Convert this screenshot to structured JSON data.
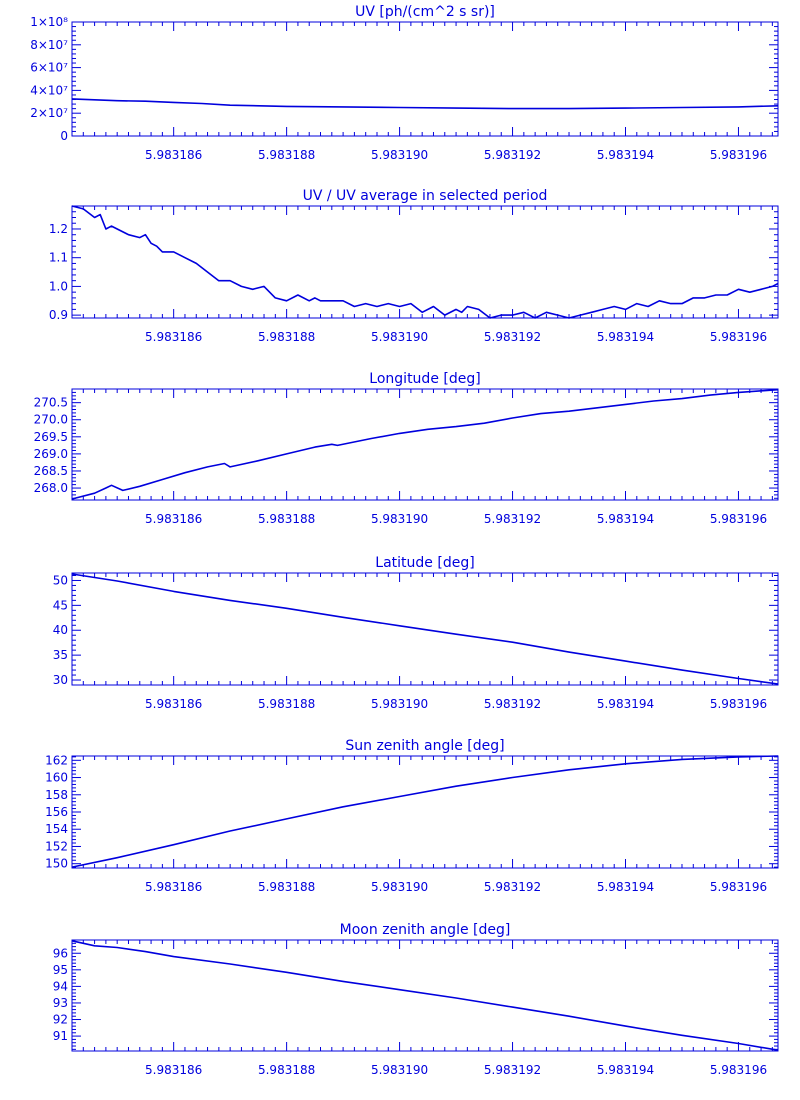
{
  "style": {
    "color": "#0000dd",
    "background": "#ffffff"
  },
  "x_axis": {
    "range": [
      5.9831842,
      5.9831967
    ],
    "tick_labels": [
      {
        "value": 5.983186,
        "label": "5.983186"
      },
      {
        "value": 5.983188,
        "label": "5.983188"
      },
      {
        "value": 5.98319,
        "label": "5.983190"
      },
      {
        "value": 5.983192,
        "label": "5.983192"
      },
      {
        "value": 5.983194,
        "label": "5.983194"
      },
      {
        "value": 5.983196,
        "label": "5.983196"
      }
    ]
  },
  "chart_data": [
    {
      "type": "line",
      "title": "UV [ph/(cm^2 s sr)]",
      "ylim": [
        0,
        100000000
      ],
      "yticks": [
        {
          "value": 0,
          "label": "0"
        },
        {
          "value": 20000000,
          "label": "2×10⁷"
        },
        {
          "value": 40000000,
          "label": "4×10⁷"
        },
        {
          "value": 60000000,
          "label": "6×10⁷"
        },
        {
          "value": 80000000,
          "label": "8×10⁷"
        },
        {
          "value": 100000000,
          "label": "1×10⁸"
        }
      ],
      "x": [
        5.9831842,
        5.983185,
        5.9831855,
        5.983186,
        5.9831865,
        5.983187,
        5.983188,
        5.983189,
        5.98319,
        5.983191,
        5.983192,
        5.983193,
        5.983194,
        5.983195,
        5.983196,
        5.9831967
      ],
      "y": [
        32500000,
        31000000,
        30500000,
        29500000,
        28500000,
        27000000,
        26000000,
        25500000,
        25000000,
        24500000,
        24000000,
        24000000,
        24500000,
        25000000,
        25500000,
        26500000
      ]
    },
    {
      "type": "line",
      "title": "UV / UV average in selected period",
      "ylim": [
        0.89,
        1.28
      ],
      "yticks": [
        {
          "value": 0.9,
          "label": "0.9"
        },
        {
          "value": 1.0,
          "label": "1.0"
        },
        {
          "value": 1.1,
          "label": "1.1"
        },
        {
          "value": 1.2,
          "label": "1.2"
        }
      ],
      "x": [
        5.9831842,
        5.9831844,
        5.9831846,
        5.9831847,
        5.9831848,
        5.9831849,
        5.983185,
        5.9831852,
        5.9831854,
        5.9831855,
        5.9831856,
        5.9831857,
        5.9831858,
        5.983186,
        5.9831862,
        5.9831864,
        5.9831866,
        5.9831868,
        5.9831869,
        5.983187,
        5.9831872,
        5.9831874,
        5.9831876,
        5.9831878,
        5.983188,
        5.9831882,
        5.9831884,
        5.9831885,
        5.9831886,
        5.9831888,
        5.983189,
        5.9831892,
        5.9831894,
        5.9831896,
        5.9831898,
        5.98319,
        5.9831902,
        5.9831904,
        5.9831906,
        5.9831908,
        5.983191,
        5.9831911,
        5.9831912,
        5.9831914,
        5.9831916,
        5.9831918,
        5.983192,
        5.9831922,
        5.9831924,
        5.9831926,
        5.9831928,
        5.983193,
        5.9831932,
        5.9831934,
        5.9831936,
        5.9831938,
        5.983194,
        5.9831942,
        5.9831944,
        5.9831946,
        5.9831948,
        5.983195,
        5.9831952,
        5.9831954,
        5.9831956,
        5.9831958,
        5.983196,
        5.9831962,
        5.9831964,
        5.9831966,
        5.9831967
      ],
      "y": [
        1.28,
        1.27,
        1.24,
        1.25,
        1.2,
        1.21,
        1.2,
        1.18,
        1.17,
        1.18,
        1.15,
        1.14,
        1.12,
        1.12,
        1.1,
        1.08,
        1.05,
        1.02,
        1.02,
        1.02,
        1.0,
        0.99,
        1.0,
        0.96,
        0.95,
        0.97,
        0.95,
        0.96,
        0.95,
        0.95,
        0.95,
        0.93,
        0.94,
        0.93,
        0.94,
        0.93,
        0.94,
        0.91,
        0.93,
        0.9,
        0.92,
        0.91,
        0.93,
        0.92,
        0.89,
        0.9,
        0.9,
        0.91,
        0.89,
        0.91,
        0.9,
        0.89,
        0.9,
        0.91,
        0.92,
        0.93,
        0.92,
        0.94,
        0.93,
        0.95,
        0.94,
        0.94,
        0.96,
        0.96,
        0.97,
        0.97,
        0.99,
        0.98,
        0.99,
        1.0,
        1.01
      ]
    },
    {
      "type": "line",
      "title": "Longitude [deg]",
      "ylim": [
        267.65,
        270.9
      ],
      "yticks": [
        {
          "value": 268.0,
          "label": "268.0"
        },
        {
          "value": 268.5,
          "label": "268.5"
        },
        {
          "value": 269.0,
          "label": "269.0"
        },
        {
          "value": 269.5,
          "label": "269.5"
        },
        {
          "value": 270.0,
          "label": "270.0"
        },
        {
          "value": 270.5,
          "label": "270.5"
        }
      ],
      "x": [
        5.9831842,
        5.9831846,
        5.9831848,
        5.9831849,
        5.9831851,
        5.9831854,
        5.9831858,
        5.9831862,
        5.9831866,
        5.9831869,
        5.983187,
        5.9831875,
        5.983188,
        5.9831885,
        5.9831888,
        5.9831889,
        5.9831895,
        5.98319,
        5.9831905,
        5.983191,
        5.9831915,
        5.983192,
        5.9831925,
        5.983193,
        5.9831935,
        5.983194,
        5.9831945,
        5.983195,
        5.9831955,
        5.983196,
        5.9831967
      ],
      "y": [
        267.68,
        267.85,
        268.0,
        268.08,
        267.93,
        268.05,
        268.25,
        268.45,
        268.62,
        268.72,
        268.62,
        268.8,
        269.0,
        269.2,
        269.28,
        269.25,
        269.45,
        269.6,
        269.72,
        269.8,
        269.9,
        270.05,
        270.18,
        270.25,
        270.35,
        270.45,
        270.55,
        270.62,
        270.72,
        270.8,
        270.88
      ]
    },
    {
      "type": "line",
      "title": "Latitude [deg]",
      "ylim": [
        29,
        51.5
      ],
      "yticks": [
        {
          "value": 30,
          "label": "30"
        },
        {
          "value": 35,
          "label": "35"
        },
        {
          "value": 40,
          "label": "40"
        },
        {
          "value": 45,
          "label": "45"
        },
        {
          "value": 50,
          "label": "50"
        }
      ],
      "x": [
        5.9831842,
        5.983185,
        5.983186,
        5.983187,
        5.983188,
        5.983189,
        5.98319,
        5.983191,
        5.983192,
        5.983193,
        5.983194,
        5.983195,
        5.983196,
        5.9831967
      ],
      "y": [
        51.3,
        49.9,
        47.8,
        46.0,
        44.4,
        42.6,
        40.9,
        39.2,
        37.6,
        35.6,
        33.8,
        32.0,
        30.3,
        29.2
      ]
    },
    {
      "type": "line",
      "title": "Sun zenith angle [deg]",
      "ylim": [
        149.5,
        162.5
      ],
      "yticks": [
        {
          "value": 150,
          "label": "150"
        },
        {
          "value": 152,
          "label": "152"
        },
        {
          "value": 154,
          "label": "154"
        },
        {
          "value": 156,
          "label": "156"
        },
        {
          "value": 158,
          "label": "158"
        },
        {
          "value": 160,
          "label": "160"
        },
        {
          "value": 162,
          "label": "162"
        }
      ],
      "x": [
        5.9831842,
        5.983185,
        5.983186,
        5.983187,
        5.983188,
        5.983189,
        5.98319,
        5.983191,
        5.983192,
        5.983193,
        5.983194,
        5.983195,
        5.983196,
        5.9831967
      ],
      "y": [
        149.6,
        150.7,
        152.2,
        153.8,
        155.2,
        156.6,
        157.8,
        159.0,
        160.0,
        160.9,
        161.6,
        162.1,
        162.4,
        162.5
      ]
    },
    {
      "type": "line",
      "title": "Moon zenith angle [deg]",
      "ylim": [
        90.1,
        96.8
      ],
      "yticks": [
        {
          "value": 91,
          "label": "91"
        },
        {
          "value": 92,
          "label": "92"
        },
        {
          "value": 93,
          "label": "93"
        },
        {
          "value": 94,
          "label": "94"
        },
        {
          "value": 95,
          "label": "95"
        },
        {
          "value": 96,
          "label": "96"
        }
      ],
      "x": [
        5.9831842,
        5.9831846,
        5.983185,
        5.9831855,
        5.983186,
        5.983187,
        5.983188,
        5.983189,
        5.98319,
        5.983191,
        5.983192,
        5.983193,
        5.983194,
        5.983195,
        5.983196,
        5.9831967
      ],
      "y": [
        96.75,
        96.45,
        96.35,
        96.1,
        95.8,
        95.35,
        94.85,
        94.3,
        93.8,
        93.3,
        92.75,
        92.2,
        91.6,
        91.05,
        90.55,
        90.15
      ]
    }
  ]
}
